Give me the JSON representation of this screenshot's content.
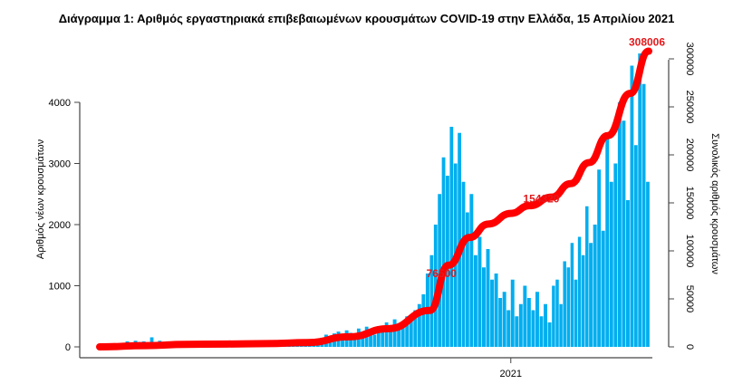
{
  "chart_data": {
    "type": "bar+line",
    "title": "Διάγραμμα 1: Αριθμός εργαστηριακά επιβεβαιωμένων κρουσμάτων COVID-19 στην Ελλάδα, 15 Απριλίου 2021",
    "ylabel_left": "Αριθμός νέων κρουσμάτων",
    "ylabel_right": "Συνολικός αριθμός κρουσμάτων",
    "xlabel": "",
    "x_ticks": [
      {
        "date": "2021-01-01",
        "label": "2021"
      }
    ],
    "y_left_ticks": [
      0,
      1000,
      2000,
      3000,
      4000
    ],
    "y_right_ticks": [
      0,
      50000,
      100000,
      150000,
      200000,
      250000,
      300000
    ],
    "y_left_range": [
      0,
      4900
    ],
    "y_right_range": [
      0,
      308006
    ],
    "x_range": [
      "2020-02-26",
      "2021-04-15"
    ],
    "colors": {
      "bars": "#00aeef",
      "cumulative": "#ff0000",
      "labels": "#e31a1c"
    },
    "daily_new_cases": [
      {
        "month": "2020-02",
        "start_day": 26,
        "values": [
          0,
          2
        ]
      },
      {
        "month": "2020-03",
        "values": [
          3,
          10,
          30,
          45,
          60,
          90,
          70,
          100,
          80,
          90
        ]
      },
      {
        "month": "2020-04",
        "values": [
          60,
          156,
          80,
          100,
          60,
          90,
          40,
          50,
          30,
          20
        ]
      },
      {
        "month": "2020-05",
        "values": [
          15,
          10,
          20,
          10,
          15,
          20,
          10,
          5,
          15,
          25
        ]
      },
      {
        "month": "2020-06",
        "values": [
          20,
          30,
          15,
          20,
          10,
          25,
          30,
          20,
          15,
          25
        ]
      },
      {
        "month": "2020-07",
        "values": [
          30,
          35,
          25,
          40,
          30,
          20,
          45,
          35,
          30,
          50
        ]
      },
      {
        "month": "2020-08",
        "values": [
          40,
          60,
          120,
          150,
          200,
          180,
          220,
          250,
          200,
          270
        ]
      },
      {
        "month": "2020-09",
        "values": [
          230,
          160,
          300,
          250,
          330,
          270,
          200,
          340,
          300,
          400
        ]
      },
      {
        "month": "2020-10",
        "values": [
          350,
          450,
          300,
          400,
          500,
          450,
          600,
          700,
          860,
          1200
        ]
      },
      {
        "month": "2020-11",
        "values": [
          1500,
          2000,
          2500,
          3100,
          2800,
          3600,
          3000,
          3500,
          2700,
          2200
        ]
      },
      {
        "month": "2020-12",
        "values": [
          2500,
          1500,
          1800,
          1300,
          1600,
          1100,
          1200,
          800,
          900,
          600
        ]
      },
      {
        "month": "2021-01",
        "values": [
          1100,
          500,
          700,
          1000,
          800,
          600,
          900,
          500,
          700,
          400
        ]
      },
      {
        "month": "2021-02",
        "values": [
          1000,
          1100,
          700,
          1400,
          1300,
          1700,
          1100,
          1800,
          1500,
          2300
        ]
      },
      {
        "month": "2021-03",
        "values": [
          1700,
          2000,
          2900,
          1900,
          3500,
          2700,
          3000,
          4000,
          3700,
          2400
        ]
      },
      {
        "month": "2021-04",
        "end_day": 15,
        "values": [
          4600,
          3300,
          4800,
          4300,
          2700
        ]
      }
    ],
    "cumulative_cases": [
      {
        "date": "2020-02-26",
        "value": 0
      },
      {
        "date": "2020-04-01",
        "value": 1300
      },
      {
        "date": "2020-05-01",
        "value": 2600
      },
      {
        "date": "2020-06-01",
        "value": 3000
      },
      {
        "date": "2020-07-01",
        "value": 3400
      },
      {
        "date": "2020-08-01",
        "value": 4500
      },
      {
        "date": "2020-09-01",
        "value": 10500
      },
      {
        "date": "2020-10-01",
        "value": 19000
      },
      {
        "date": "2020-11-01",
        "value": 38000
      },
      {
        "date": "2020-11-15",
        "value": 85000
      },
      {
        "date": "2020-12-01",
        "value": 114000
      },
      {
        "date": "2020-12-15",
        "value": 128000
      },
      {
        "date": "2021-01-01",
        "value": 139000
      },
      {
        "date": "2021-01-15",
        "value": 147000
      },
      {
        "date": "2021-02-01",
        "value": 156000
      },
      {
        "date": "2021-02-15",
        "value": 170000
      },
      {
        "date": "2021-03-01",
        "value": 192000
      },
      {
        "date": "2021-03-15",
        "value": 220000
      },
      {
        "date": "2021-04-01",
        "value": 264000
      },
      {
        "date": "2021-04-15",
        "value": 308006
      }
    ],
    "annotations": [
      {
        "date": "2020-11-12",
        "value": 76500,
        "text": "76500"
      },
      {
        "date": "2021-01-24",
        "value": 154320,
        "text": "154320"
      },
      {
        "date": "2021-04-15",
        "value": 308006,
        "text": "308006"
      }
    ]
  }
}
